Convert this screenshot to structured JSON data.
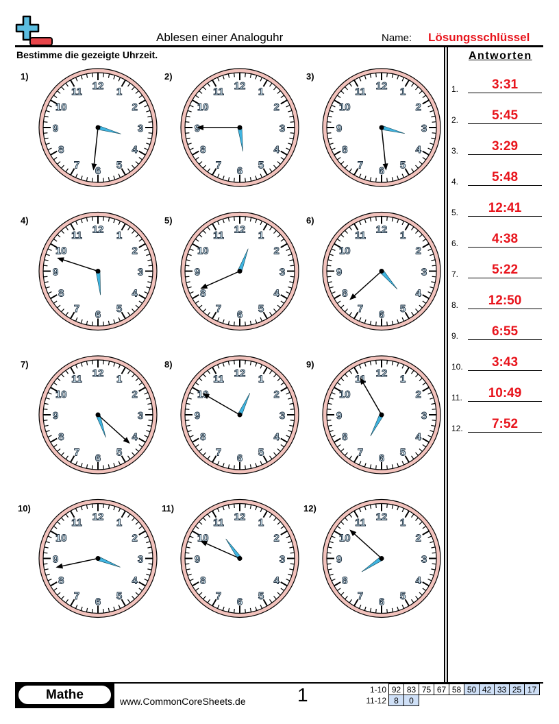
{
  "header": {
    "title": "Ablesen einer Analoguhr",
    "name_label": "Name:",
    "name_value": "Lösungsschlüssel",
    "instruction": "Bestimme die gezeigte Uhrzeit."
  },
  "answers": {
    "heading": "Antworten",
    "items": [
      {
        "n": "1.",
        "q": "1)",
        "time": "3:31"
      },
      {
        "n": "2.",
        "q": "2)",
        "time": "5:45"
      },
      {
        "n": "3.",
        "q": "3)",
        "time": "3:29"
      },
      {
        "n": "4.",
        "q": "4)",
        "time": "5:48"
      },
      {
        "n": "5.",
        "q": "5)",
        "time": "12:41"
      },
      {
        "n": "6.",
        "q": "6)",
        "time": "4:38"
      },
      {
        "n": "7.",
        "q": "7)",
        "time": "5:22"
      },
      {
        "n": "8.",
        "q": "8)",
        "time": "12:50"
      },
      {
        "n": "9.",
        "q": "9)",
        "time": "6:55"
      },
      {
        "n": "10.",
        "q": "10)",
        "time": "3:43"
      },
      {
        "n": "11.",
        "q": "11)",
        "time": "10:49"
      },
      {
        "n": "12.",
        "q": "12)",
        "time": "7:52"
      }
    ]
  },
  "footer": {
    "subject": "Mathe",
    "site": "www.CommonCoreSheets.de",
    "page": "1",
    "score_rows": [
      {
        "label": "1-10",
        "values": [
          "92",
          "83",
          "75",
          "67",
          "58",
          "50",
          "42",
          "33",
          "25",
          "17"
        ]
      },
      {
        "label": "11-12",
        "values": [
          "8",
          "0"
        ]
      }
    ]
  },
  "colors": {
    "answer": "#e8141c",
    "clock_rim": "#f3c3bd",
    "hour_hand": "#3fb4e0",
    "logo_plus": "#5bbde0",
    "logo_minus": "#e8454a"
  }
}
